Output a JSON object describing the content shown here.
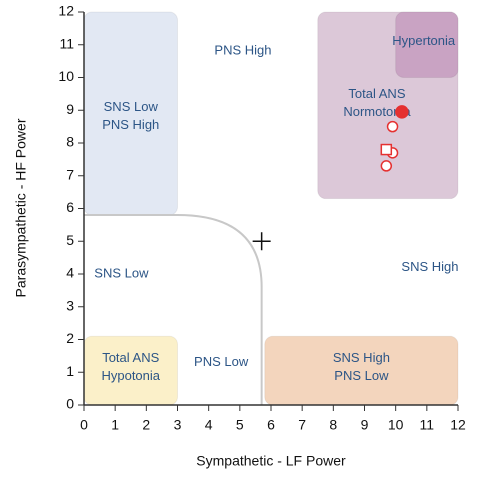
{
  "chart_data": {
    "type": "scatter",
    "xlabel": "Sympathetic - LF Power",
    "ylabel": "Parasympathetic - HF Power",
    "xlim": [
      0,
      12
    ],
    "ylim": [
      0,
      12
    ],
    "xticks": [
      0,
      1,
      2,
      3,
      4,
      5,
      6,
      7,
      8,
      9,
      10,
      11,
      12
    ],
    "yticks": [
      0,
      1,
      2,
      3,
      4,
      5,
      6,
      7,
      8,
      9,
      10,
      11,
      12
    ],
    "regions": [
      {
        "lines": [
          "SNS Low",
          "PNS High"
        ],
        "x": [
          0,
          3
        ],
        "y": [
          5.8,
          12
        ],
        "color": "#e2e8f3",
        "label_at": [
          1.5,
          8.8
        ]
      },
      {
        "lines": [
          "Total ANS",
          "Normotonia"
        ],
        "x": [
          7.5,
          12
        ],
        "y": [
          6.3,
          12
        ],
        "color": "#dcc8d8",
        "label_at": [
          9.4,
          9.2
        ]
      },
      {
        "lines": [
          "Hypertonia"
        ],
        "x": [
          10,
          12
        ],
        "y": [
          10,
          12
        ],
        "color": "#c9a3c3",
        "label_at": [
          10.9,
          11.1
        ]
      },
      {
        "lines": [
          "Total ANS",
          "Hypotonia"
        ],
        "x": [
          0,
          3
        ],
        "y": [
          0,
          2.1
        ],
        "color": "#fbf0c9",
        "label_at": [
          1.5,
          1.15
        ]
      },
      {
        "lines": [
          "SNS High",
          "PNS Low"
        ],
        "x": [
          5.8,
          12
        ],
        "y": [
          0,
          2.1
        ],
        "color": "#f3d5bd",
        "label_at": [
          8.9,
          1.15
        ]
      }
    ],
    "annotations": [
      {
        "text": "PNS High",
        "x": 5.1,
        "y": 10.8
      },
      {
        "text": "SNS Low",
        "x": 1.2,
        "y": 4.0
      },
      {
        "text": "SNS High",
        "x": 11.1,
        "y": 4.2
      },
      {
        "text": "PNS Low",
        "x": 4.4,
        "y": 1.3
      }
    ],
    "center": {
      "x": 5.7,
      "y": 5
    },
    "series": [
      {
        "color": "#e53030",
        "marker": "filled-circle",
        "x": [
          10.2
        ],
        "y": [
          8.95
        ]
      },
      {
        "color": "#e53030",
        "marker": "open-circle",
        "x": [
          9.9,
          9.9,
          9.7
        ],
        "y": [
          8.5,
          7.7,
          7.3
        ]
      },
      {
        "color": "#e53030",
        "marker": "open-square",
        "x": [
          9.7
        ],
        "y": [
          7.8
        ]
      }
    ]
  }
}
